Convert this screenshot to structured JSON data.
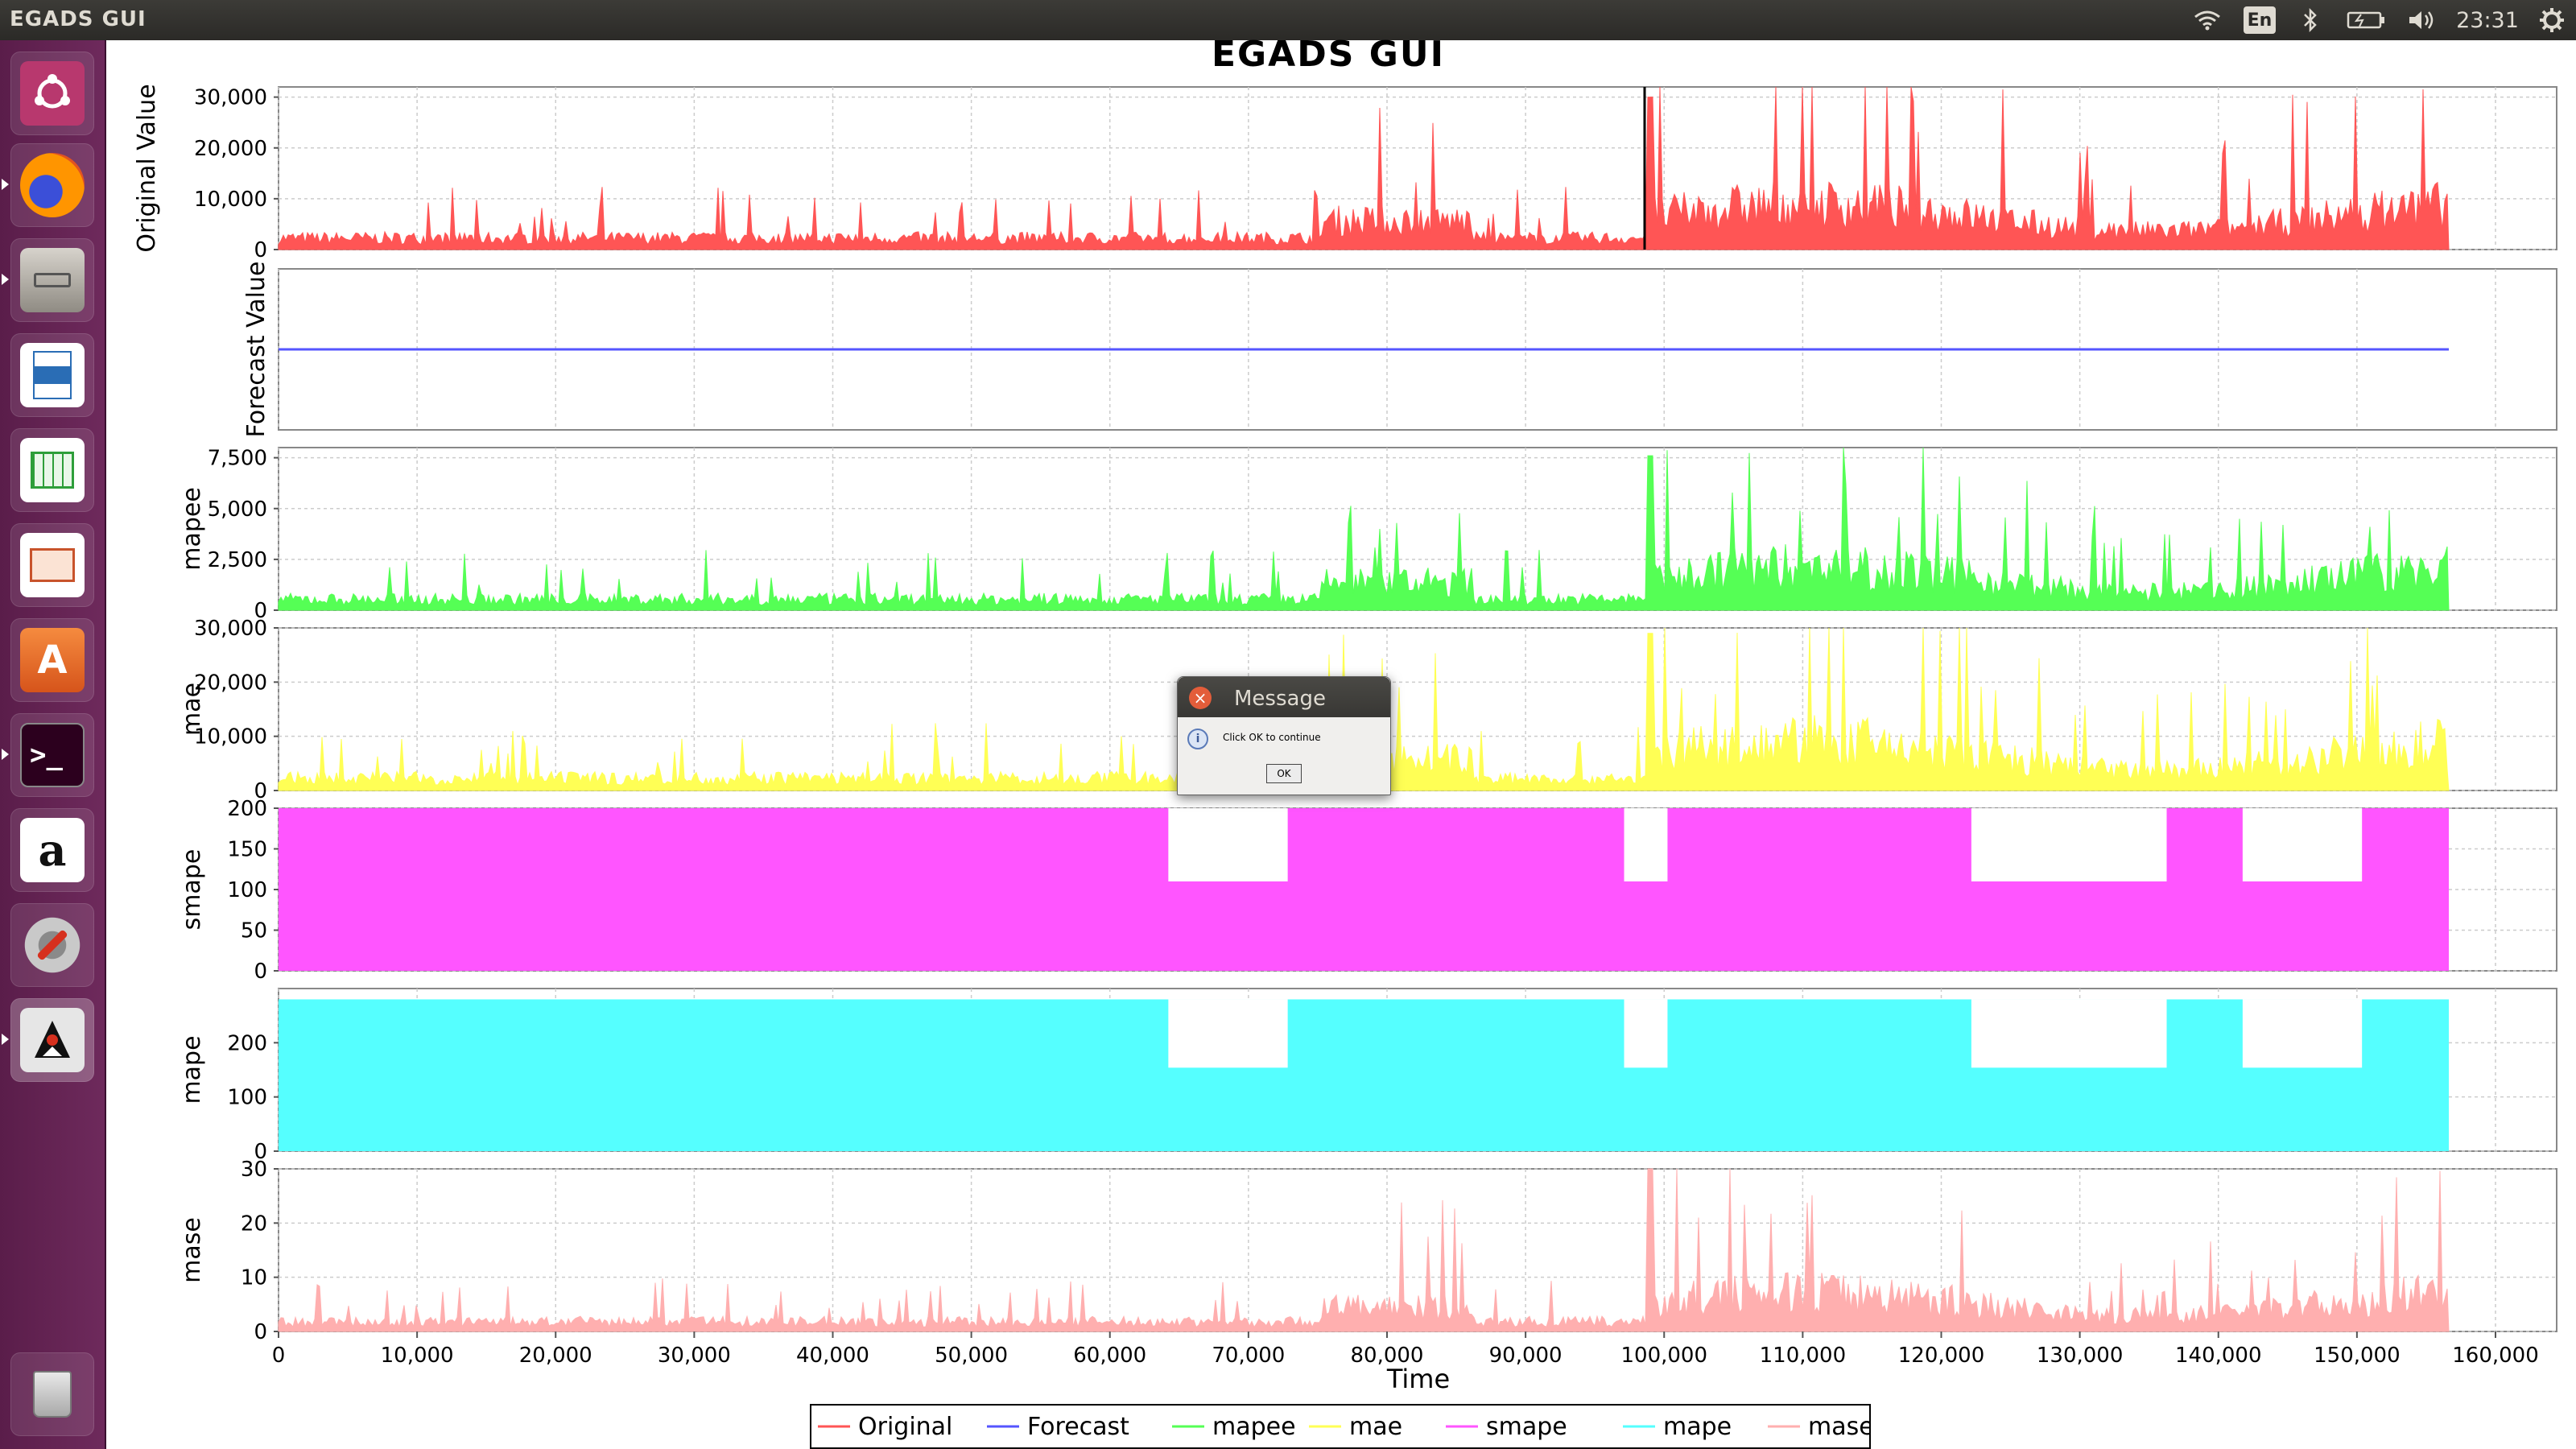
{
  "window": {
    "title": "EGADS GUI"
  },
  "topbar": {
    "lang": "En",
    "time": "23:31"
  },
  "app": {
    "title": "EGADS GUI"
  },
  "dialog": {
    "title": "Message",
    "message": "Click OK to continue",
    "ok_label": "OK"
  },
  "launcher": {
    "items": [
      "ubuntu-dash",
      "firefox",
      "files",
      "libreoffice-writer",
      "libreoffice-calc",
      "libreoffice-impress",
      "software-center",
      "terminal",
      "amazon",
      "system-settings",
      "java-app",
      "trash"
    ]
  },
  "chart_data": {
    "type": "area",
    "title": "EGADS GUI",
    "xlabel": "Time",
    "xlim": [
      0,
      160000
    ],
    "x_ticks": [
      "0",
      "10,000",
      "20,000",
      "30,000",
      "40,000",
      "50,000",
      "60,000",
      "70,000",
      "80,000",
      "90,000",
      "100,000",
      "110,000",
      "120,000",
      "130,000",
      "140,000",
      "150,000",
      "160,000"
    ],
    "legend": {
      "position": "bottom",
      "entries": [
        "Original",
        "Forecast",
        "mapee",
        "mae",
        "smape",
        "mape",
        "mase"
      ]
    },
    "panels": [
      {
        "ylabel": "Original Value",
        "color": "#ff5555",
        "ylim": [
          0,
          32000
        ],
        "ticks": [
          "0",
          "10,000",
          "20,000",
          "30,000"
        ],
        "style": "spiky",
        "peak": 30000,
        "baseline": 2500
      },
      {
        "ylabel": "Forecast Value",
        "color": "#5555ff",
        "ylim": [
          0,
          1
        ],
        "ticks": [],
        "style": "flat",
        "value": 0.5
      },
      {
        "ylabel": "mapee",
        "color": "#55ff55",
        "ylim": [
          0,
          8000
        ],
        "ticks": [
          "0",
          "2,500",
          "5,000",
          "7,500"
        ],
        "style": "spiky",
        "peak": 7600,
        "baseline": 600
      },
      {
        "ylabel": "mae",
        "color": "#ffff55",
        "ylim": [
          0,
          30000
        ],
        "ticks": [
          "0",
          "10,000",
          "20,000",
          "30,000"
        ],
        "style": "spiky",
        "peak": 29000,
        "baseline": 2500
      },
      {
        "ylabel": "smape",
        "color": "#ff55ff",
        "ylim": [
          0,
          200
        ],
        "ticks": [
          "0",
          "50",
          "100",
          "150",
          "200"
        ],
        "style": "saturated",
        "max": 200
      },
      {
        "ylabel": "mape",
        "color": "#55ffff",
        "ylim": [
          0,
          300
        ],
        "ticks": [
          "0",
          "100",
          "200"
        ],
        "style": "saturated",
        "max": 280
      },
      {
        "ylabel": "mase",
        "color": "#ffafaf",
        "ylim": [
          0,
          30
        ],
        "ticks": [
          "0",
          "10",
          "20",
          "30"
        ],
        "style": "spiky",
        "peak": 30,
        "baseline": 2
      }
    ]
  },
  "colors": {
    "original": "#ff5555",
    "forecast": "#5555ff",
    "mapee": "#55ff55",
    "mae": "#ffff55",
    "smape": "#ff55ff",
    "mape": "#55ffff",
    "mase": "#ffafaf"
  }
}
